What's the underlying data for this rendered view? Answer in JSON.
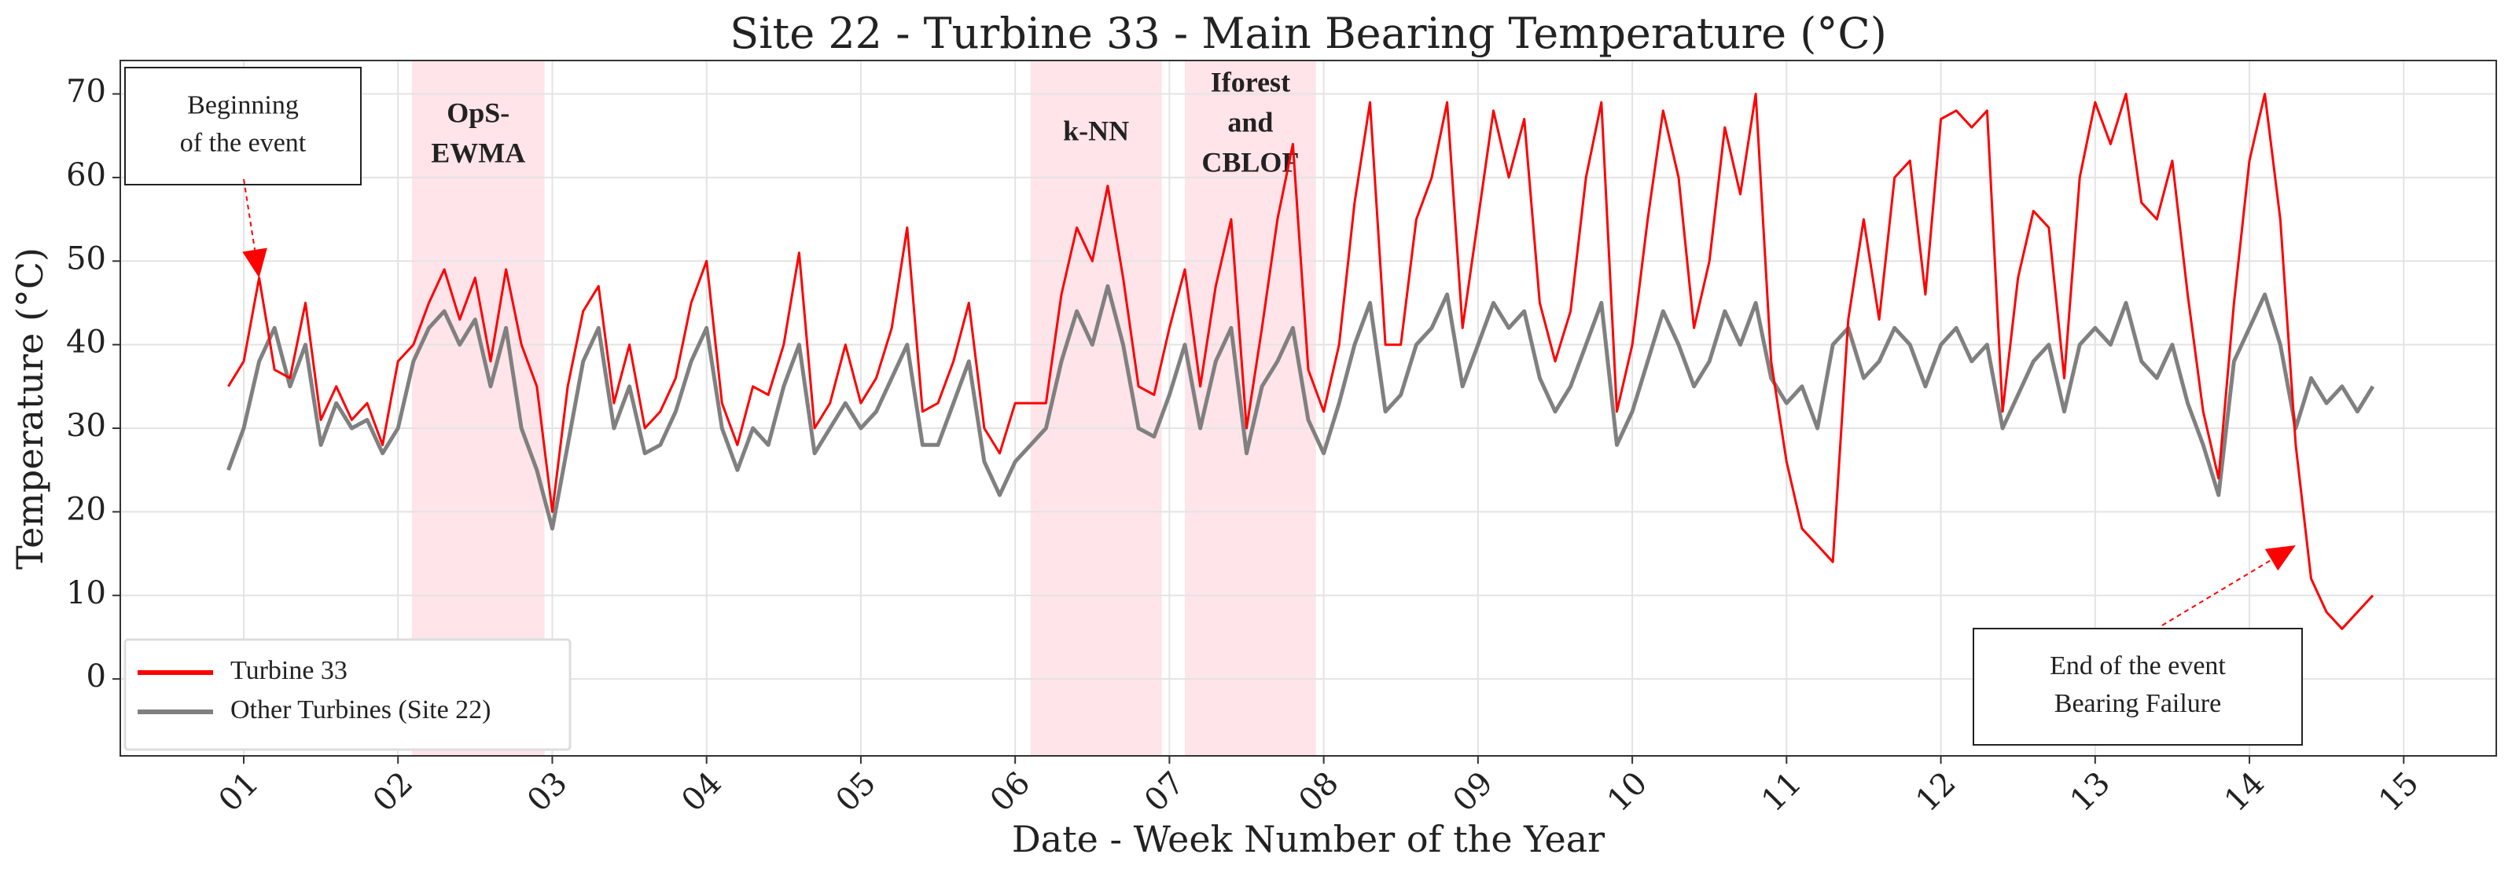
{
  "chart_data": {
    "type": "line",
    "title": "Site 22 - Turbine 33 - Main Bearing Temperature (°C)",
    "x_label": "Date - Week Number of the Year",
    "y_label": "Temperature (°C)",
    "x": [
      0.9,
      1.0,
      1.1,
      1.2,
      1.3,
      1.4,
      1.5,
      1.6,
      1.7,
      1.8,
      1.9,
      2.0,
      2.1,
      2.2,
      2.3,
      2.4,
      2.5,
      2.6,
      2.7,
      2.8,
      2.9,
      3.0,
      3.1,
      3.2,
      3.3,
      3.4,
      3.5,
      3.6,
      3.7,
      3.8,
      3.9,
      4.0,
      4.1,
      4.2,
      4.3,
      4.4,
      4.5,
      4.6,
      4.7,
      4.8,
      4.9,
      5.0,
      5.1,
      5.2,
      5.3,
      5.4,
      5.5,
      5.6,
      5.7,
      5.8,
      5.9,
      6.0,
      6.1,
      6.2,
      6.3,
      6.4,
      6.5,
      6.6,
      6.7,
      6.8,
      6.9,
      7.0,
      7.1,
      7.2,
      7.3,
      7.4,
      7.5,
      7.6,
      7.7,
      7.8,
      7.9,
      8.0,
      8.1,
      8.2,
      8.3,
      8.4,
      8.5,
      8.6,
      8.7,
      8.8,
      8.9,
      9.0,
      9.1,
      9.2,
      9.3,
      9.4,
      9.5,
      9.6,
      9.7,
      9.8,
      9.9,
      10.0,
      10.1,
      10.2,
      10.3,
      10.4,
      10.5,
      10.6,
      10.7,
      10.8,
      10.9,
      11.0,
      11.1,
      11.2,
      11.3,
      11.4,
      11.5,
      11.6,
      11.7,
      11.8,
      11.9,
      12.0,
      12.1,
      12.2,
      12.3,
      12.4,
      12.5,
      12.6,
      12.7,
      12.8,
      12.9,
      13.0,
      13.1,
      13.2,
      13.3,
      13.4,
      13.5,
      13.6,
      13.7,
      13.8,
      13.9,
      14.0,
      14.1,
      14.2,
      14.3,
      14.4,
      14.5,
      14.6,
      14.7,
      14.8
    ],
    "series": [
      {
        "name": "Turbine 33",
        "color": "#ff0000",
        "values": [
          35,
          38,
          48,
          37,
          36,
          45,
          31,
          35,
          31,
          33,
          28,
          38,
          40,
          45,
          49,
          43,
          48,
          38,
          49,
          40,
          35,
          20,
          35,
          44,
          47,
          33,
          40,
          30,
          32,
          36,
          45,
          50,
          33,
          28,
          35,
          34,
          40,
          51,
          30,
          33,
          40,
          33,
          36,
          42,
          54,
          32,
          33,
          38,
          45,
          30,
          27,
          33,
          33,
          33,
          46,
          54,
          50,
          59,
          48,
          35,
          34,
          42,
          49,
          35,
          47,
          55,
          30,
          42,
          55,
          64,
          37,
          32,
          40,
          57,
          69,
          40,
          40,
          55,
          60,
          69,
          42,
          55,
          68,
          60,
          67,
          45,
          38,
          44,
          60,
          69,
          32,
          40,
          55,
          68,
          60,
          42,
          50,
          66,
          58,
          70,
          38,
          26,
          18,
          16,
          14,
          43,
          55,
          43,
          60,
          62,
          46,
          67,
          68,
          66,
          68,
          32,
          48,
          56,
          54,
          36,
          60,
          69,
          64,
          70,
          57,
          55,
          62,
          46,
          32,
          24,
          45,
          62,
          70,
          55,
          28,
          12,
          8,
          6,
          8,
          10
        ]
      },
      {
        "name": "Other Turbines (Site 22)",
        "color": "#808080",
        "values": [
          25,
          30,
          38,
          42,
          35,
          40,
          28,
          33,
          30,
          31,
          27,
          30,
          38,
          42,
          44,
          40,
          43,
          35,
          42,
          30,
          25,
          18,
          28,
          38,
          42,
          30,
          35,
          27,
          28,
          32,
          38,
          42,
          30,
          25,
          30,
          28,
          35,
          40,
          27,
          30,
          33,
          30,
          32,
          36,
          40,
          28,
          28,
          33,
          38,
          26,
          22,
          26,
          28,
          30,
          38,
          44,
          40,
          47,
          40,
          30,
          29,
          34,
          40,
          30,
          38,
          42,
          27,
          35,
          38,
          42,
          31,
          27,
          33,
          40,
          45,
          32,
          34,
          40,
          42,
          46,
          35,
          40,
          45,
          42,
          44,
          36,
          32,
          35,
          40,
          45,
          28,
          32,
          38,
          44,
          40,
          35,
          38,
          44,
          40,
          45,
          36,
          33,
          35,
          30,
          40,
          42,
          36,
          38,
          42,
          40,
          35,
          40,
          42,
          38,
          40,
          30,
          34,
          38,
          40,
          32,
          40,
          42,
          40,
          45,
          38,
          36,
          40,
          33,
          28,
          22,
          38,
          42,
          46,
          40,
          30,
          36,
          33,
          35,
          32,
          35
        ]
      }
    ],
    "xlim": [
      0.2,
      15.6
    ],
    "ylim": [
      -9.2,
      74
    ],
    "xticks": [
      {
        "value": 1,
        "label": "01"
      },
      {
        "value": 2,
        "label": "02"
      },
      {
        "value": 3,
        "label": "03"
      },
      {
        "value": 4,
        "label": "04"
      },
      {
        "value": 5,
        "label": "05"
      },
      {
        "value": 6,
        "label": "06"
      },
      {
        "value": 7,
        "label": "07"
      },
      {
        "value": 8,
        "label": "08"
      },
      {
        "value": 9,
        "label": "09"
      },
      10,
      11,
      12,
      13,
      14,
      15
    ],
    "yticks": [
      0,
      10,
      20,
      30,
      40,
      50,
      60,
      70
    ],
    "grid": true,
    "legend": "lower left",
    "highlights": [
      {
        "label": [
          "OpS-",
          "EWMA"
        ],
        "x0": 2.09,
        "x1": 2.95,
        "color": "#ffe4ea"
      },
      {
        "label": [
          "k-NN"
        ],
        "x0": 6.1,
        "x1": 6.95,
        "color": "#ffe4ea"
      },
      {
        "label": [
          "Iforest",
          "and",
          "CBLOF"
        ],
        "x0": 7.1,
        "x1": 7.95,
        "color": "#ffe4ea"
      }
    ],
    "annotations": [
      {
        "text": [
          "Beginning",
          "of the event"
        ],
        "x": 1.1,
        "y": 48
      },
      {
        "text": [
          "End of the event",
          "Bearing Failure"
        ],
        "x": 14.3,
        "y": 16
      }
    ]
  }
}
